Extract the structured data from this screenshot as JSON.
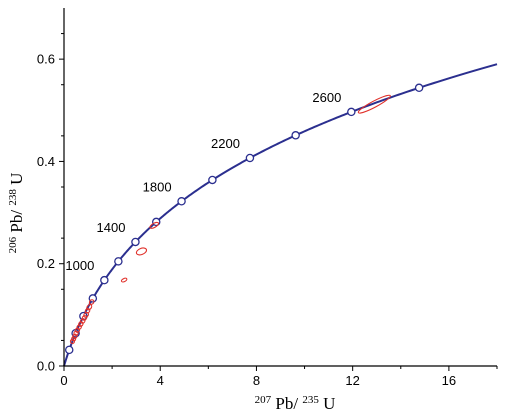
{
  "chart_data": {
    "type": "scatter",
    "title": "",
    "xlabel": {
      "sup": "207",
      "main": "Pb/",
      "sup2": "235",
      "tail": "U"
    },
    "ylabel": {
      "sup": "206",
      "main": "Pb/",
      "sup2": "238",
      "tail": "U"
    },
    "xlim": [
      0,
      18
    ],
    "ylim": [
      0,
      0.7
    ],
    "x_ticks": [
      {
        "value": 0,
        "label": "0"
      },
      {
        "value": 4,
        "label": "4"
      },
      {
        "value": 8,
        "label": "8"
      },
      {
        "value": 12,
        "label": "12"
      },
      {
        "value": 16,
        "label": "16"
      }
    ],
    "y_ticks": [
      {
        "value": 0,
        "label": "0.0"
      },
      {
        "value": 0.2,
        "label": "0.2"
      },
      {
        "value": 0.4,
        "label": "0.4"
      },
      {
        "value": 0.6,
        "label": "0.6"
      }
    ],
    "concordia_ages_ma": [
      200,
      400,
      600,
      800,
      1000,
      1200,
      1400,
      1600,
      1800,
      2000,
      2200,
      2400,
      2600,
      2800,
      3000
    ],
    "age_labels": [
      {
        "age": 1000,
        "text": "1000"
      },
      {
        "age": 1400,
        "text": "1400"
      },
      {
        "age": 1800,
        "text": "1800"
      },
      {
        "age": 2200,
        "text": "2200"
      },
      {
        "age": 2600,
        "text": "2600"
      }
    ],
    "ellipses": [
      {
        "x": 12.9,
        "y": 0.512,
        "rx": 0.75,
        "ry": 0.006,
        "angle_deg": -28
      },
      {
        "x": 3.75,
        "y": 0.275,
        "rx": 0.2,
        "ry": 0.004,
        "angle_deg": -30
      },
      {
        "x": 3.22,
        "y": 0.224,
        "rx": 0.22,
        "ry": 0.006,
        "angle_deg": -22
      },
      {
        "x": 2.5,
        "y": 0.168,
        "rx": 0.12,
        "ry": 0.003,
        "angle_deg": -25
      },
      {
        "x": 1.15,
        "y": 0.125,
        "rx": 0.1,
        "ry": 0.004,
        "angle_deg": -45
      },
      {
        "x": 1.05,
        "y": 0.115,
        "rx": 0.12,
        "ry": 0.004,
        "angle_deg": -50
      },
      {
        "x": 0.98,
        "y": 0.108,
        "rx": 0.1,
        "ry": 0.004,
        "angle_deg": -50
      },
      {
        "x": 0.92,
        "y": 0.1,
        "rx": 0.11,
        "ry": 0.004,
        "angle_deg": -50
      },
      {
        "x": 0.85,
        "y": 0.094,
        "rx": 0.1,
        "ry": 0.004,
        "angle_deg": -50
      },
      {
        "x": 0.78,
        "y": 0.088,
        "rx": 0.1,
        "ry": 0.004,
        "angle_deg": -50
      },
      {
        "x": 0.7,
        "y": 0.082,
        "rx": 0.1,
        "ry": 0.004,
        "angle_deg": -50
      },
      {
        "x": 0.63,
        "y": 0.076,
        "rx": 0.1,
        "ry": 0.004,
        "angle_deg": -50
      },
      {
        "x": 0.56,
        "y": 0.07,
        "rx": 0.09,
        "ry": 0.004,
        "angle_deg": -50
      },
      {
        "x": 0.5,
        "y": 0.064,
        "rx": 0.09,
        "ry": 0.004,
        "angle_deg": -50
      },
      {
        "x": 0.45,
        "y": 0.058,
        "rx": 0.09,
        "ry": 0.004,
        "angle_deg": -50
      },
      {
        "x": 0.4,
        "y": 0.053,
        "rx": 0.08,
        "ry": 0.004,
        "angle_deg": -50
      },
      {
        "x": 0.35,
        "y": 0.048,
        "rx": 0.08,
        "ry": 0.004,
        "angle_deg": -50
      }
    ],
    "grid": false,
    "legend": "none"
  }
}
